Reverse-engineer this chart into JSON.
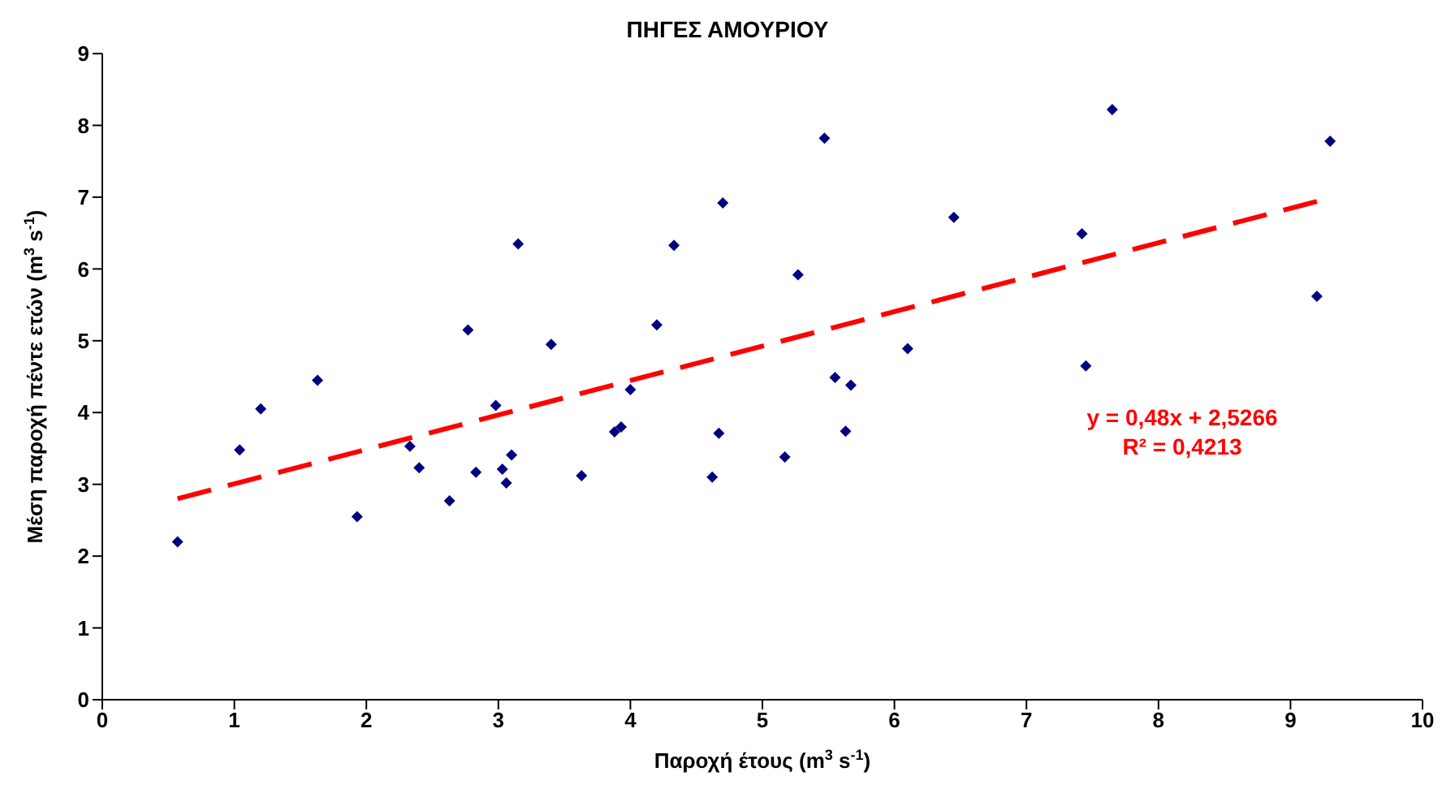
{
  "chart_data": {
    "type": "scatter",
    "title": "ΠΗΓΕΣ ΑΜΟΥΡΙΟΥ",
    "xlabel": "Παροχή έτους (m$^{3}$ s$^{-1}$)",
    "ylabel": "Μέση παροχή πέντε ετών (m$^{3}$ s$^{-1}$)",
    "xlim": [
      0,
      10
    ],
    "xticks": [
      0,
      1,
      2,
      3,
      4,
      5,
      6,
      7,
      8,
      9,
      10
    ],
    "ylim": [
      0,
      9
    ],
    "yticks": [
      0,
      1,
      2,
      3,
      4,
      5,
      6,
      7,
      8,
      9
    ],
    "grid": false,
    "legend": false,
    "marker": "diamond",
    "annotations": [
      "y = 0,48x + 2,5266",
      "R² = 0,4213"
    ],
    "series": [
      {
        "color": "#000080",
        "x": [
          0.57,
          1.04,
          1.2,
          1.63,
          1.93,
          2.33,
          2.4,
          2.63,
          2.77,
          2.83,
          2.98,
          3.03,
          3.06,
          3.1,
          3.15,
          3.4,
          3.63,
          3.88,
          3.93,
          4.0,
          4.2,
          4.33,
          4.62,
          4.67,
          4.7,
          5.17,
          5.27,
          5.47,
          5.55,
          5.63,
          5.67,
          6.1,
          6.45,
          7.42,
          7.45,
          7.65,
          9.2,
          9.3
        ],
        "values": [
          2.2,
          3.48,
          4.05,
          4.45,
          2.55,
          3.53,
          3.23,
          2.77,
          5.15,
          3.17,
          4.1,
          3.21,
          3.02,
          3.41,
          6.35,
          4.95,
          3.12,
          3.73,
          3.8,
          4.32,
          5.22,
          6.33,
          3.1,
          3.71,
          6.92,
          3.38,
          5.92,
          7.82,
          4.49,
          3.74,
          4.38,
          4.89,
          6.72,
          6.49,
          4.65,
          8.22,
          5.62,
          7.78
        ]
      },
      {
        "type": "line",
        "color": "#ff0000",
        "line_style": "dashed",
        "marker": "none",
        "x": [
          0.57,
          9.2
        ],
        "values": [
          2.8,
          6.94
        ]
      }
    ]
  }
}
